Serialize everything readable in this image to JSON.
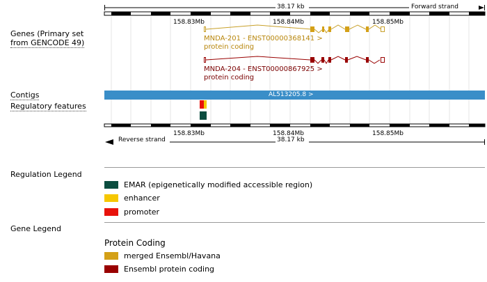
{
  "tracks": {
    "genes_label_line1": "Genes (Primary set",
    "genes_label_line2": "from GENCODE 49)",
    "contigs_label": "Contigs",
    "regulatory_label": "Regulatory features"
  },
  "ruler": {
    "top_kb": "38.17 kb",
    "forward_strand": "Forward strand",
    "bottom_kb": "38.17 kb",
    "reverse_strand": "Reverse strand",
    "top_ticks": [
      "158.83Mb",
      "158.84Mb",
      "158.85Mb"
    ],
    "bottom_ticks": [
      "158.83Mb",
      "158.84Mb",
      "158.85Mb"
    ]
  },
  "transcripts": [
    {
      "name": "MNDA-201 - ENST00000368141 >",
      "biotype": "protein coding",
      "color": "#b8860b"
    },
    {
      "name": "MNDA-204 - ENST00000867925 >",
      "biotype": "protein coding",
      "color": "#8b0000"
    }
  ],
  "contig": {
    "label": "AL513205.8 >",
    "color": "#3a8ec8"
  },
  "regulation_legend": {
    "title": "Regulation Legend",
    "items": [
      {
        "label": "EMAR (epigenetically modified accessible region)",
        "color": "#0b4d3f"
      },
      {
        "label": "enhancer",
        "color": "#f6c700"
      },
      {
        "label": "promoter",
        "color": "#e8120b"
      }
    ]
  },
  "gene_legend": {
    "title": "Gene Legend",
    "subtitle": "Protein Coding",
    "items": [
      {
        "label": "merged Ensembl/Havana",
        "color": "#d4a017"
      },
      {
        "label": "Ensembl protein coding",
        "color": "#990000"
      }
    ]
  }
}
